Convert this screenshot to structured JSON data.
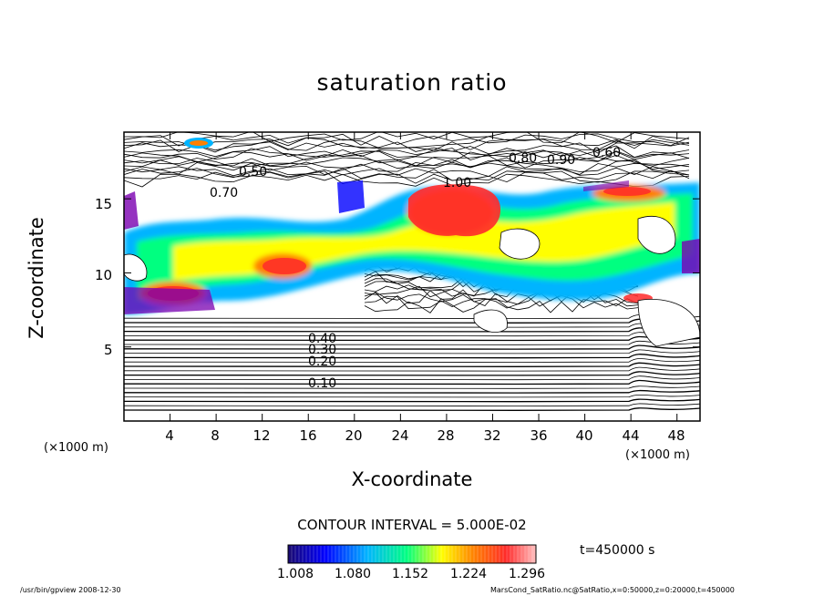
{
  "chart_data": {
    "type": "heatmap",
    "title": "saturation ratio",
    "xlabel": "X-coordinate",
    "ylabel": "Z-coordinate",
    "x_unit": "(×1000 m)",
    "x_unit_right": "(×1000 m)",
    "xlim": [
      0,
      50
    ],
    "ylim": [
      0,
      19.5
    ],
    "x_ticks": [
      "4",
      "8",
      "12",
      "16",
      "20",
      "24",
      "28",
      "32",
      "36",
      "40",
      "44",
      "48"
    ],
    "y_ticks": [
      "5",
      "10",
      "15"
    ],
    "contour_interval_text": "CONTOUR INTERVAL = 5.000E-02",
    "contour_labels": [
      "0.10",
      "0.20",
      "0.30",
      "0.40",
      "0.50",
      "0.60",
      "0.70",
      "0.80",
      "0.90",
      "1.00"
    ],
    "colorbar": {
      "min": 1.008,
      "max": 1.296,
      "ticks": [
        "1.008",
        "1.080",
        "1.152",
        "1.224",
        "1.296"
      ],
      "colors": [
        "#1a0a6e",
        "#0000ff",
        "#00b4ff",
        "#00ff80",
        "#ffff00",
        "#ff8000",
        "#ff2a2a",
        "#ffc0c0"
      ]
    },
    "time_label": "t=450000 s",
    "colors": {
      "supersaturated_low": "#7a00b0",
      "supersaturated_high": "#ff2a2a"
    }
  },
  "footer": {
    "left": "/usr/bin/gpview   2008-12-30",
    "right": "MarsCond_SatRatio.nc@SatRatio,x=0:50000,z=0:20000,t=450000"
  }
}
